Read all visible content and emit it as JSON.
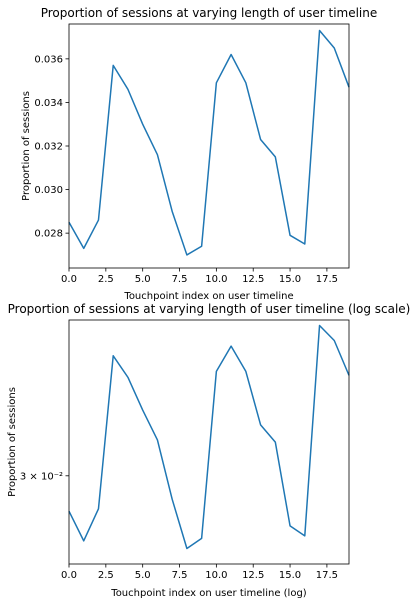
{
  "chart_data": [
    {
      "type": "line",
      "title": "Proportion of sessions at varying length of user timeline",
      "xlabel": "Touchpoint index on user timeline",
      "ylabel": "Proportion of sessions",
      "xlim": [
        0,
        19
      ],
      "ylim": [
        0.0264,
        0.0376
      ],
      "x_ticks": [
        0,
        2.5,
        5,
        7.5,
        10,
        12.5,
        15,
        17.5
      ],
      "x_tick_labels": [
        "0.0",
        "2.5",
        "5.0",
        "7.5",
        "10.0",
        "12.5",
        "15.0",
        "17.5"
      ],
      "y_ticks": [
        0.028,
        0.03,
        0.032,
        0.034,
        0.036
      ],
      "y_tick_labels": [
        "0.028",
        "0.030",
        "0.032",
        "0.034",
        "0.036"
      ],
      "grid": false,
      "series": [
        {
          "x": [
            0,
            1,
            2,
            3,
            4,
            5,
            6,
            7,
            8,
            9,
            10,
            11,
            12,
            13,
            14,
            15,
            16,
            17,
            18,
            19
          ],
          "values": [
            0.0285,
            0.0273,
            0.0286,
            0.0357,
            0.0346,
            0.033,
            0.0316,
            0.029,
            0.027,
            0.0274,
            0.0349,
            0.0362,
            0.0349,
            0.0323,
            0.0315,
            0.0279,
            0.0275,
            0.0373,
            0.0365,
            0.0347
          ],
          "color": "#1f77b4"
        }
      ]
    },
    {
      "type": "line",
      "title": "Proportion of sessions at varying length of user timeline (log scale)",
      "xlabel": "Touchpoint index on user timeline (log)",
      "ylabel": "Proportion of sessions",
      "yscale": "log",
      "xlim": [
        0,
        19
      ],
      "ylim": [
        0.0264,
        0.0376
      ],
      "x_ticks": [
        0,
        2.5,
        5,
        7.5,
        10,
        12.5,
        15,
        17.5
      ],
      "x_tick_labels": [
        "0.0",
        "2.5",
        "5.0",
        "7.5",
        "10.0",
        "12.5",
        "15.0",
        "17.5"
      ],
      "y_ticks": [
        0.03
      ],
      "y_tick_labels": [
        "3 × 10⁻²"
      ],
      "grid": false,
      "series": [
        {
          "x": [
            0,
            1,
            2,
            3,
            4,
            5,
            6,
            7,
            8,
            9,
            10,
            11,
            12,
            13,
            14,
            15,
            16,
            17,
            18,
            19
          ],
          "values": [
            0.0285,
            0.0273,
            0.0286,
            0.0357,
            0.0346,
            0.033,
            0.0316,
            0.029,
            0.027,
            0.0274,
            0.0349,
            0.0362,
            0.0349,
            0.0323,
            0.0315,
            0.0279,
            0.0275,
            0.0373,
            0.0365,
            0.0347
          ],
          "color": "#1f77b4"
        }
      ]
    }
  ]
}
